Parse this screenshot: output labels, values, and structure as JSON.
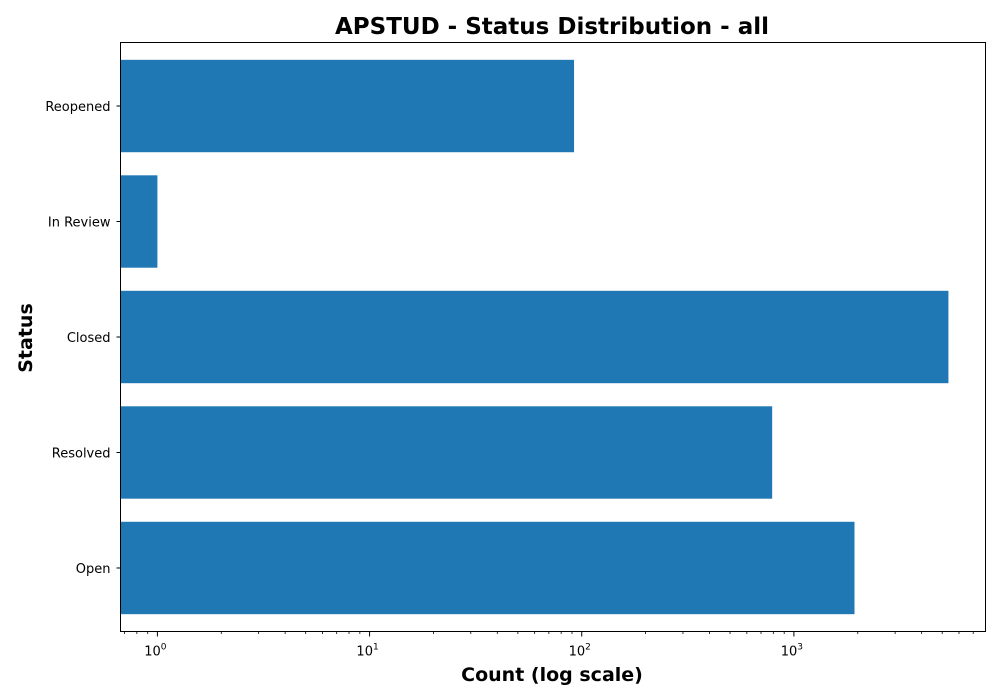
{
  "chart_data": {
    "type": "bar",
    "orientation": "horizontal",
    "title": "APSTUD - Status Distribution - all",
    "xlabel": "Count (log scale)",
    "ylabel": "Status",
    "x_scale": "log",
    "xlim": [
      0.67,
      8000
    ],
    "categories": [
      "Open",
      "Resolved",
      "Closed",
      "In Review",
      "Reopened"
    ],
    "values": [
      1930,
      790,
      5350,
      1,
      92
    ],
    "x_ticks": [
      {
        "base": "10",
        "exp": "0",
        "value": 1
      },
      {
        "base": "10",
        "exp": "1",
        "value": 10
      },
      {
        "base": "10",
        "exp": "2",
        "value": 100
      },
      {
        "base": "10",
        "exp": "3",
        "value": 1000
      }
    ],
    "bar_color": "#1f77b4",
    "grid": false,
    "legend": "none"
  }
}
